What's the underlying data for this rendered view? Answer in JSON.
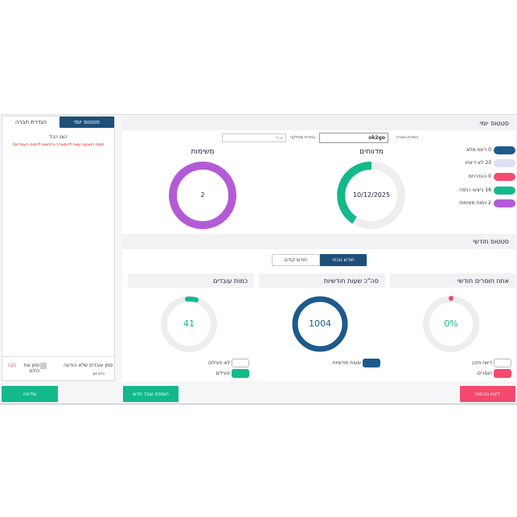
{
  "left_panel": {
    "tabs": [
      "סטטוס יומי",
      "הגדרת חברה"
    ],
    "show_all": "הצג הכל",
    "note": "(סמן הטבעה עשוי להתאריך בהתאם לכמות העובדים)",
    "clear": "נקה",
    "select_all": "סמן את כולם",
    "select_unreported": "סמן עובדים שלא הודעה",
    "employee": "כהנ נון",
    "send": "שליחה"
  },
  "daily": {
    "title": "סטטוס יומי",
    "company_label": "בחירת חברה",
    "company": "ok2go",
    "department_label": "בחירת מחלקה",
    "department": "הכל",
    "legend": [
      "0 דיווח מלא",
      "23 לא דיווחו",
      "0 העדרויות",
      "18 ביצעו כניסה",
      "2 כמות משימות"
    ],
    "reporters": {
      "title": "מדווחים",
      "center": "10/12/2025"
    },
    "tasks": {
      "title": "משימות",
      "center": "2"
    }
  },
  "monthly": {
    "title": "סטטוס חודשי",
    "tabs": [
      "חודש נוכחי",
      "חודש קודם"
    ],
    "cards": [
      {
        "title": "אחוז חוסרים חודשי",
        "center": "0%",
        "toggles": [
          "דיווח תקין",
          "חוסרים"
        ]
      },
      {
        "title": "סה\"כ שעות חודשיות",
        "center": "1004",
        "toggles": [
          "שעות חודשיות"
        ]
      },
      {
        "title": "כמות עובדים",
        "center": "41",
        "toggles": [
          "לא פעילים",
          "פעילים"
        ]
      }
    ]
  },
  "buttons": {
    "add_employee": "הוספת עובד חדש",
    "attendance": "דיווח נוכחות"
  }
}
